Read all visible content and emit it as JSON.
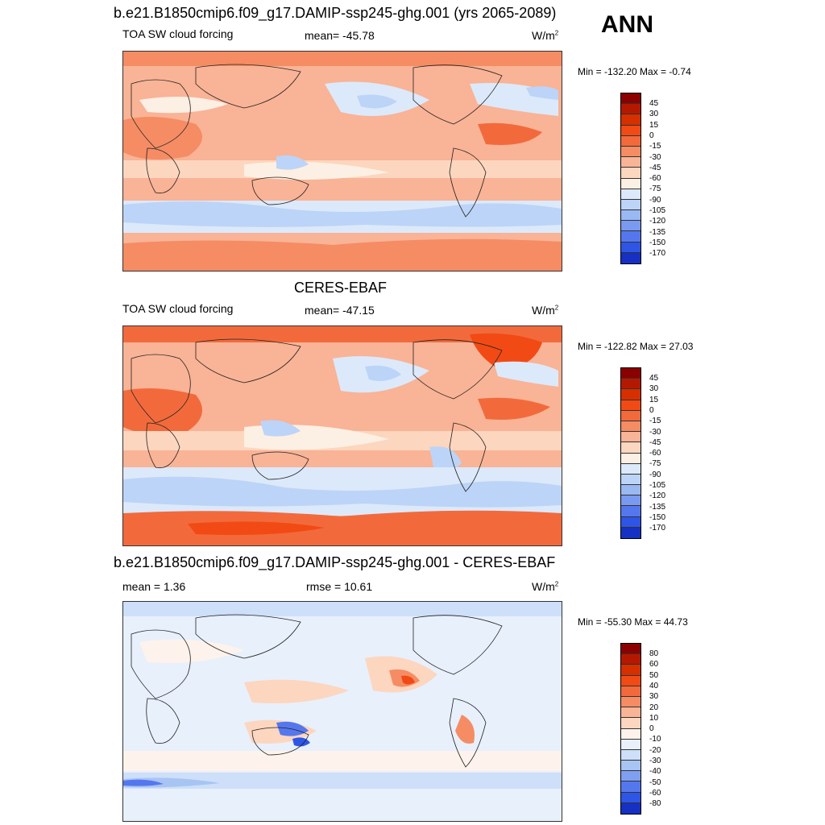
{
  "annual_label": "ANN",
  "colors": {
    "abs_scale": [
      "#8b0000",
      "#b51800",
      "#d62f00",
      "#f24a14",
      "#f26a3c",
      "#f58c64",
      "#f9b396",
      "#fcd6bf",
      "#fcefe3",
      "#dce9fa",
      "#bcd4f7",
      "#9ab8f2",
      "#7a9af0",
      "#5577ee",
      "#2e55e6",
      "#1530c2",
      "#05138f"
    ],
    "diff_scale": [
      "#8b0000",
      "#b51800",
      "#d62f00",
      "#f24a14",
      "#f26a3c",
      "#f58c64",
      "#f9b396",
      "#fcd6bf",
      "#fdf3ec",
      "#e8f0fc",
      "#cddff9",
      "#a8c4f3",
      "#7f9ff0",
      "#5577ee",
      "#2e55e6",
      "#1530c2",
      "#05138f"
    ]
  },
  "panels": [
    {
      "title": "b.e21.B1850cmip6.f09_g17.DAMIP-ssp245-ghg.001 (yrs 2065-2089)",
      "variable": "TOA SW cloud forcing",
      "stat": "mean= -45.78",
      "units": "W/m",
      "units_exp": "2",
      "minmax": "Min = -132.20 Max =  -0.74",
      "colorbar_labels": [
        "45",
        "30",
        "15",
        "0",
        "-15",
        "-30",
        "-45",
        "-60",
        "-75",
        "-90",
        "-105",
        "-120",
        "-135",
        "-150",
        "-170"
      ]
    },
    {
      "title": "CERES-EBAF",
      "variable": "TOA SW cloud forcing",
      "stat": "mean= -47.15",
      "units": "W/m",
      "units_exp": "2",
      "minmax": "Min = -122.82 Max =  27.03",
      "colorbar_labels": [
        "45",
        "30",
        "15",
        "0",
        "-15",
        "-30",
        "-45",
        "-60",
        "-75",
        "-90",
        "-105",
        "-120",
        "-135",
        "-150",
        "-170"
      ]
    },
    {
      "title": "b.e21.B1850cmip6.f09_g17.DAMIP-ssp245-ghg.001 - CERES-EBAF",
      "stat_left": "mean =   1.36",
      "stat": "rmse =  10.61",
      "units": "W/m",
      "units_exp": "2",
      "minmax": "Min = -55.30 Max =  44.73",
      "colorbar_labels": [
        "80",
        "60",
        "50",
        "40",
        "30",
        "20",
        "10",
        "0",
        "-10",
        "-20",
        "-30",
        "-40",
        "-50",
        "-60",
        "-80"
      ]
    }
  ]
}
